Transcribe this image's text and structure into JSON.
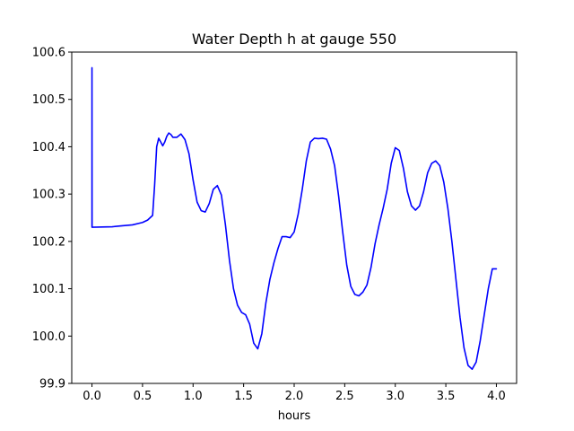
{
  "chart_data": {
    "type": "line",
    "title": "Water Depth h at gauge 550",
    "xlabel": "hours",
    "ylabel": "",
    "xlim": [
      -0.2,
      4.2
    ],
    "ylim": [
      99.9,
      100.6
    ],
    "grid": false,
    "line_color": "#0000ff",
    "x_ticks": [
      {
        "value": 0.0,
        "label": "0.0"
      },
      {
        "value": 0.5,
        "label": "0.5"
      },
      {
        "value": 1.0,
        "label": "1.0"
      },
      {
        "value": 1.5,
        "label": "1.5"
      },
      {
        "value": 2.0,
        "label": "2.0"
      },
      {
        "value": 2.5,
        "label": "2.5"
      },
      {
        "value": 3.0,
        "label": "3.0"
      },
      {
        "value": 3.5,
        "label": "3.5"
      },
      {
        "value": 4.0,
        "label": "4.0"
      }
    ],
    "y_ticks": [
      {
        "value": 99.9,
        "label": "99.9"
      },
      {
        "value": 100.0,
        "label": "100.0"
      },
      {
        "value": 100.1,
        "label": "100.1"
      },
      {
        "value": 100.2,
        "label": "100.2"
      },
      {
        "value": 100.3,
        "label": "100.3"
      },
      {
        "value": 100.4,
        "label": "100.4"
      },
      {
        "value": 100.5,
        "label": "100.5"
      },
      {
        "value": 100.6,
        "label": "100.6"
      }
    ],
    "series": [
      {
        "x": [
          0.0,
          0.0,
          0.001,
          0.2,
          0.3,
          0.4,
          0.5,
          0.55,
          0.6,
          0.62,
          0.64,
          0.66,
          0.68,
          0.7,
          0.72,
          0.74,
          0.76,
          0.78,
          0.8,
          0.84,
          0.88,
          0.92,
          0.96,
          1.0,
          1.04,
          1.08,
          1.12,
          1.16,
          1.2,
          1.24,
          1.28,
          1.32,
          1.36,
          1.4,
          1.44,
          1.48,
          1.52,
          1.56,
          1.6,
          1.64,
          1.68,
          1.72,
          1.76,
          1.8,
          1.84,
          1.88,
          1.92,
          1.96,
          2.0,
          2.04,
          2.08,
          2.12,
          2.16,
          2.2,
          2.24,
          2.28,
          2.32,
          2.36,
          2.4,
          2.44,
          2.48,
          2.52,
          2.56,
          2.6,
          2.64,
          2.68,
          2.72,
          2.76,
          2.8,
          2.84,
          2.88,
          2.92,
          2.96,
          3.0,
          3.04,
          3.08,
          3.12,
          3.16,
          3.2,
          3.24,
          3.28,
          3.32,
          3.36,
          3.4,
          3.44,
          3.48,
          3.52,
          3.56,
          3.6,
          3.64,
          3.68,
          3.72,
          3.76,
          3.8,
          3.84,
          3.88,
          3.92,
          3.96,
          4.0
        ],
        "y": [
          100.23,
          100.567,
          100.23,
          100.231,
          100.233,
          100.235,
          100.24,
          100.245,
          100.255,
          100.32,
          100.4,
          100.418,
          100.41,
          100.402,
          100.41,
          100.422,
          100.429,
          100.426,
          100.42,
          100.42,
          100.427,
          100.415,
          100.385,
          100.33,
          100.283,
          100.265,
          100.262,
          100.28,
          100.31,
          100.318,
          100.298,
          100.235,
          100.16,
          100.1,
          100.065,
          100.05,
          100.045,
          100.025,
          99.985,
          99.973,
          100.005,
          100.07,
          100.12,
          100.155,
          100.185,
          100.21,
          100.21,
          100.208,
          100.22,
          100.258,
          100.31,
          100.37,
          100.41,
          100.418,
          100.417,
          100.418,
          100.416,
          100.395,
          100.36,
          100.295,
          100.22,
          100.15,
          100.105,
          100.088,
          100.085,
          100.093,
          100.108,
          100.145,
          100.195,
          100.235,
          100.27,
          100.31,
          100.365,
          100.398,
          100.392,
          100.355,
          100.305,
          100.275,
          100.266,
          100.275,
          100.305,
          100.345,
          100.365,
          100.37,
          100.36,
          100.325,
          100.27,
          100.2,
          100.12,
          100.04,
          99.975,
          99.938,
          99.93,
          99.945,
          99.99,
          100.045,
          100.1,
          100.142,
          100.142
        ]
      }
    ]
  }
}
